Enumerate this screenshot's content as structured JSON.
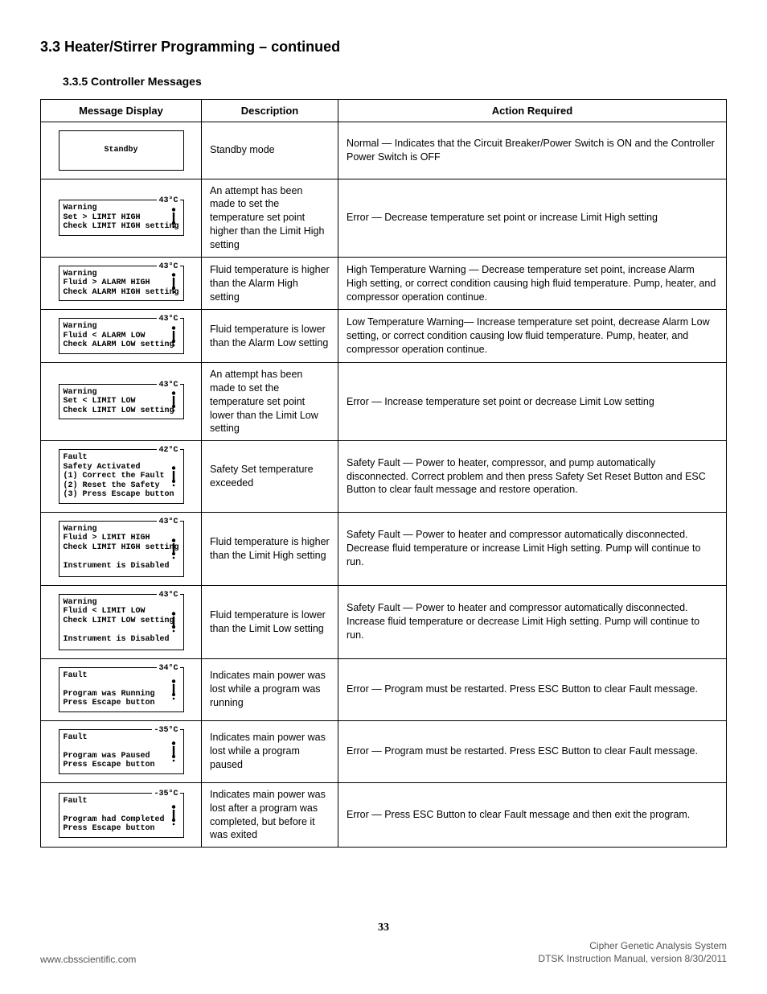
{
  "heading": "3.3 Heater/Stirrer Programming – continued",
  "subheading": "3.3.5 Controller Messages",
  "columns": {
    "msg": "Message Display",
    "desc": "Description",
    "action": "Action Required"
  },
  "rows": [
    {
      "display": {
        "type": "centered",
        "lines": [
          "Standby"
        ]
      },
      "desc": "Standby mode",
      "action": "Normal — Indicates that the Circuit Breaker/Power Switch is ON and the Controller Power Switch is OFF"
    },
    {
      "display": {
        "type": "warn",
        "temp": "43°C",
        "lines": [
          "Warning",
          "Set > LIMIT HIGH",
          "Check LIMIT HIGH setting"
        ]
      },
      "desc": "An attempt has been made to set the temperature set point higher than the Limit High setting",
      "action": "Error — Decrease temperature set point or increase Limit High setting"
    },
    {
      "display": {
        "type": "warn",
        "temp": "43°C",
        "lines": [
          "Warning",
          "Fluid > ALARM HIGH",
          "Check ALARM HIGH setting"
        ]
      },
      "desc": "Fluid temperature is higher than the Alarm High setting",
      "action": "High Temperature Warning — Decrease temperature set point, increase Alarm High setting, or correct condition causing high fluid temperature. Pump, heater, and compressor operation continue."
    },
    {
      "display": {
        "type": "warn",
        "temp": "43°C",
        "lines": [
          "Warning",
          "Fluid < ALARM LOW",
          "Check ALARM LOW setting"
        ]
      },
      "desc": "Fluid temperature is lower than the Alarm Low setting",
      "action": "Low Temperature Warning— Increase temperature set point, decrease Alarm Low setting, or correct condition causing low fluid temperature. Pump, heater, and compressor operation continue."
    },
    {
      "display": {
        "type": "warn",
        "temp": "43°C",
        "lines": [
          "Warning",
          "Set < LIMIT LOW",
          "Check LIMIT LOW setting"
        ]
      },
      "desc": "An attempt has been made to set the temperature set point lower than the Limit Low setting",
      "action": "Error — Increase temperature set point or decrease Limit Low setting"
    },
    {
      "display": {
        "type": "warn",
        "temp": "42°C",
        "lines": [
          "Fault",
          "Safety Activated",
          "(1) Correct the Fault",
          "(2) Reset the Safety",
          "(3) Press Escape button"
        ]
      },
      "desc": "Safety Set temperature exceeded",
      "action": "Safety Fault — Power to heater, compressor, and pump automatically disconnected. Correct problem and then press Safety Set Reset Button and ESC Button to clear fault message and restore operation."
    },
    {
      "display": {
        "type": "warn",
        "temp": "43°C",
        "tall": true,
        "lines": [
          "Warning",
          "Fluid > LIMIT HIGH",
          "Check LIMIT HIGH setting",
          "",
          "Instrument is Disabled"
        ]
      },
      "desc": "Fluid temperature is higher than the Limit High setting",
      "action": "Safety Fault — Power to heater and compressor automatically disconnected. Decrease fluid temperature or increase Limit High setting. Pump will continue to run."
    },
    {
      "display": {
        "type": "warn",
        "temp": "43°C",
        "tall": true,
        "lines": [
          "Warning",
          "Fluid < LIMIT LOW",
          "Check LIMIT LOW setting",
          "",
          "Instrument is Disabled"
        ]
      },
      "desc": "Fluid temperature is lower than the Limit Low setting",
      "action": "Safety Fault — Power to heater and compressor automatically disconnected. Increase fluid temperature or decrease Limit High setting. Pump will continue to run."
    },
    {
      "display": {
        "type": "warn",
        "temp": "34°C",
        "lines": [
          "Fault",
          "",
          "Program was Running",
          "Press Escape button"
        ]
      },
      "desc": "Indicates main power was lost while a program was running",
      "action": "Error — Program must be restarted. Press ESC Button to clear Fault message."
    },
    {
      "display": {
        "type": "warn",
        "temp": "-35°C",
        "lines": [
          "Fault",
          "",
          "Program was Paused",
          "Press Escape button"
        ]
      },
      "desc": "Indicates main power was lost while a program paused",
      "action": "Error — Program must be restarted. Press ESC Button to clear Fault message."
    },
    {
      "display": {
        "type": "warn",
        "temp": "-35°C",
        "lines": [
          "Fault",
          "",
          "Program had Completed",
          "Press Escape button"
        ]
      },
      "desc": "Indicates main power was lost after a program was completed, but before it was exited",
      "action": "Error — Press ESC Button to clear Fault message and then exit the program."
    }
  ],
  "page_number": "33",
  "footer": {
    "left": "www.cbsscientific.com",
    "right1": "Cipher Genetic Analysis System",
    "right2": "DTSK Instruction Manual, version 8/30/2011"
  }
}
